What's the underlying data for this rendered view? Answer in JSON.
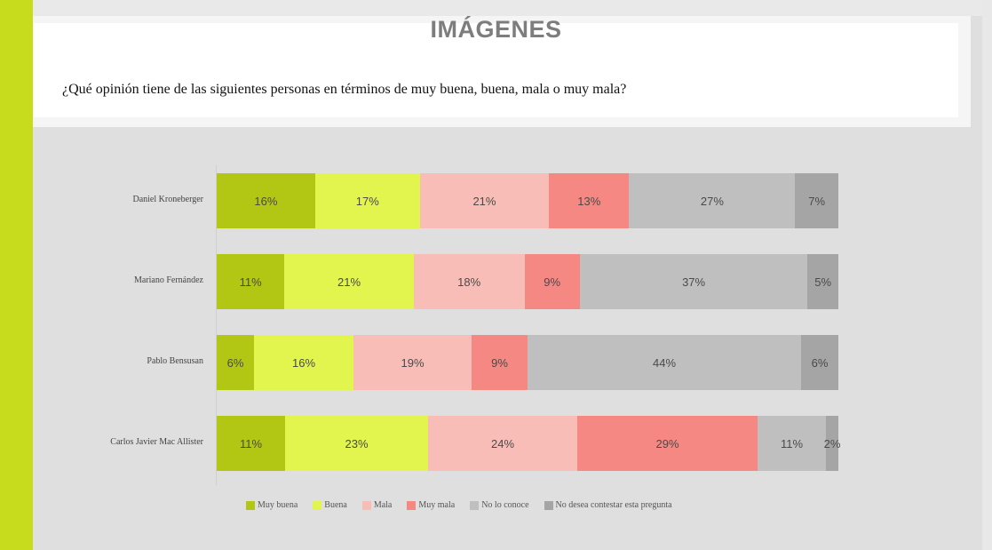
{
  "slide": {
    "title": "IMÁGENES",
    "question": "¿Qué opinión tiene de las siguientes personas en términos de muy buena, buena, mala o muy mala?",
    "accent_color": "#c8dc1e"
  },
  "legend": [
    {
      "label": "Muy buena",
      "color": "#b2c614"
    },
    {
      "label": "Buena",
      "color": "#e2f44e"
    },
    {
      "label": "Mala",
      "color": "#f9bdb7"
    },
    {
      "label": "Muy mala",
      "color": "#f68883"
    },
    {
      "label": "No lo conoce",
      "color": "#bfbfbf"
    },
    {
      "label": "No desea contestar esta pregunta",
      "color": "#a5a5a5"
    }
  ],
  "rows": [
    {
      "name": "Daniel Kroneberger",
      "labels": [
        "16%",
        "17%",
        "21%",
        "13%",
        "27%",
        "7%"
      ]
    },
    {
      "name": "Mariano Fernández",
      "labels": [
        "11%",
        "21%",
        "18%",
        "9%",
        "37%",
        "5%"
      ]
    },
    {
      "name": "Pablo Bensusan",
      "labels": [
        "6%",
        "16%",
        "19%",
        "9%",
        "44%",
        "6%"
      ]
    },
    {
      "name": "Carlos Javier Mac Allister",
      "labels": [
        "11%",
        "23%",
        "24%",
        "29%",
        "11%",
        "2%"
      ]
    }
  ],
  "chart_data": {
    "type": "bar",
    "orientation": "horizontal",
    "stacked": true,
    "percent_stacked": true,
    "title": "IMÁGENES",
    "subtitle": "¿Qué opinión tiene de las siguientes personas en términos de muy buena, buena, mala o muy mala?",
    "categories": [
      "Daniel Kroneberger",
      "Mariano Fernández",
      "Pablo Bensusan",
      "Carlos Javier Mac Allister"
    ],
    "series": [
      {
        "name": "Muy buena",
        "color": "#b2c614",
        "values": [
          16,
          11,
          6,
          11
        ]
      },
      {
        "name": "Buena",
        "color": "#e2f44e",
        "values": [
          17,
          21,
          16,
          23
        ]
      },
      {
        "name": "Mala",
        "color": "#f9bdb7",
        "values": [
          21,
          18,
          19,
          24
        ]
      },
      {
        "name": "Muy mala",
        "color": "#f68883",
        "values": [
          13,
          9,
          9,
          29
        ]
      },
      {
        "name": "No lo conoce",
        "color": "#bfbfbf",
        "values": [
          27,
          37,
          44,
          11
        ]
      },
      {
        "name": "No desea contestar esta pregunta",
        "color": "#a5a5a5",
        "values": [
          7,
          5,
          6,
          2
        ]
      }
    ],
    "xlabel": "",
    "ylabel": "",
    "xlim": [
      0,
      100
    ],
    "grid": false,
    "data_labels": true,
    "legend_position": "bottom"
  }
}
